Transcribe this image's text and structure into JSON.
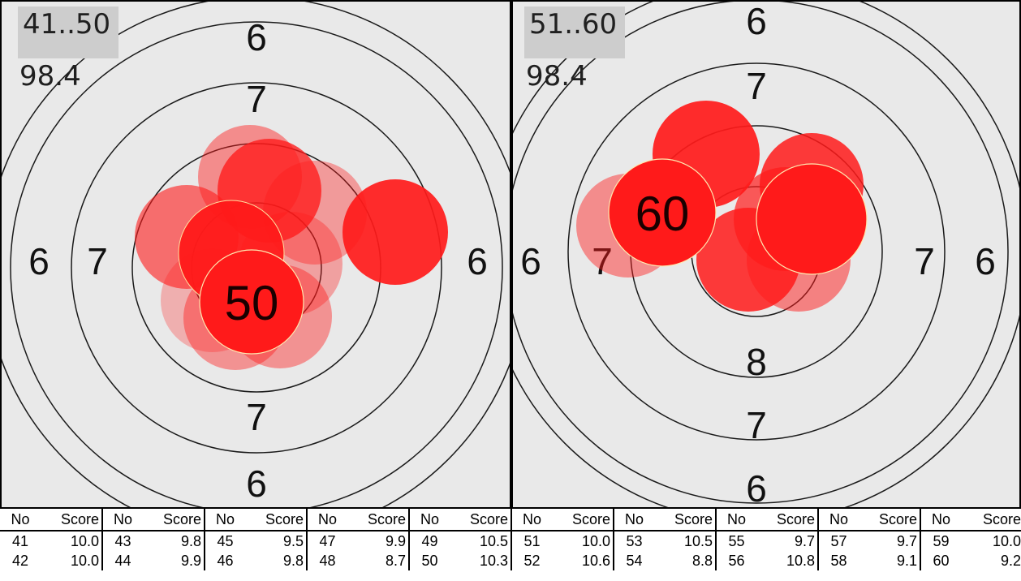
{
  "panels": [
    {
      "range_label": "41..50",
      "series_score": "98.4",
      "ring_labels": {
        "top6": "6",
        "top7": "7",
        "left6": "6",
        "left7": "7",
        "right6": "6",
        "bottom7": "7",
        "bottom6": "6"
      },
      "last_shot_label": "50"
    },
    {
      "range_label": "51..60",
      "series_score": "98.4",
      "ring_labels": {
        "top6": "6",
        "top7": "7",
        "left6": "6",
        "left7": "7",
        "right7": "7",
        "right6": "6",
        "bottom8": "8",
        "bottom7": "7",
        "bottom6": "6"
      },
      "last_shot_label": "60"
    }
  ],
  "table": {
    "header_no": "No",
    "header_score": "Score",
    "rows": [
      [
        [
          "41",
          "10.0"
        ],
        [
          "43",
          "9.8"
        ],
        [
          "45",
          "9.5"
        ],
        [
          "47",
          "9.9"
        ],
        [
          "49",
          "10.5"
        ],
        [
          "51",
          "10.0"
        ],
        [
          "53",
          "10.5"
        ],
        [
          "55",
          "9.7"
        ],
        [
          "57",
          "9.7"
        ],
        [
          "59",
          "10.0"
        ]
      ],
      [
        [
          "42",
          "10.0"
        ],
        [
          "44",
          "9.9"
        ],
        [
          "46",
          "9.8"
        ],
        [
          "48",
          "8.7"
        ],
        [
          "50",
          "10.3"
        ],
        [
          "52",
          "10.6"
        ],
        [
          "54",
          "8.8"
        ],
        [
          "56",
          "10.8"
        ],
        [
          "58",
          "9.1"
        ],
        [
          "60",
          "9.2"
        ]
      ]
    ]
  },
  "colors": {
    "shot_fill": "#ff1a1a",
    "ring_line": "#1a1a1a",
    "target_bg": "#e9e9e9"
  }
}
